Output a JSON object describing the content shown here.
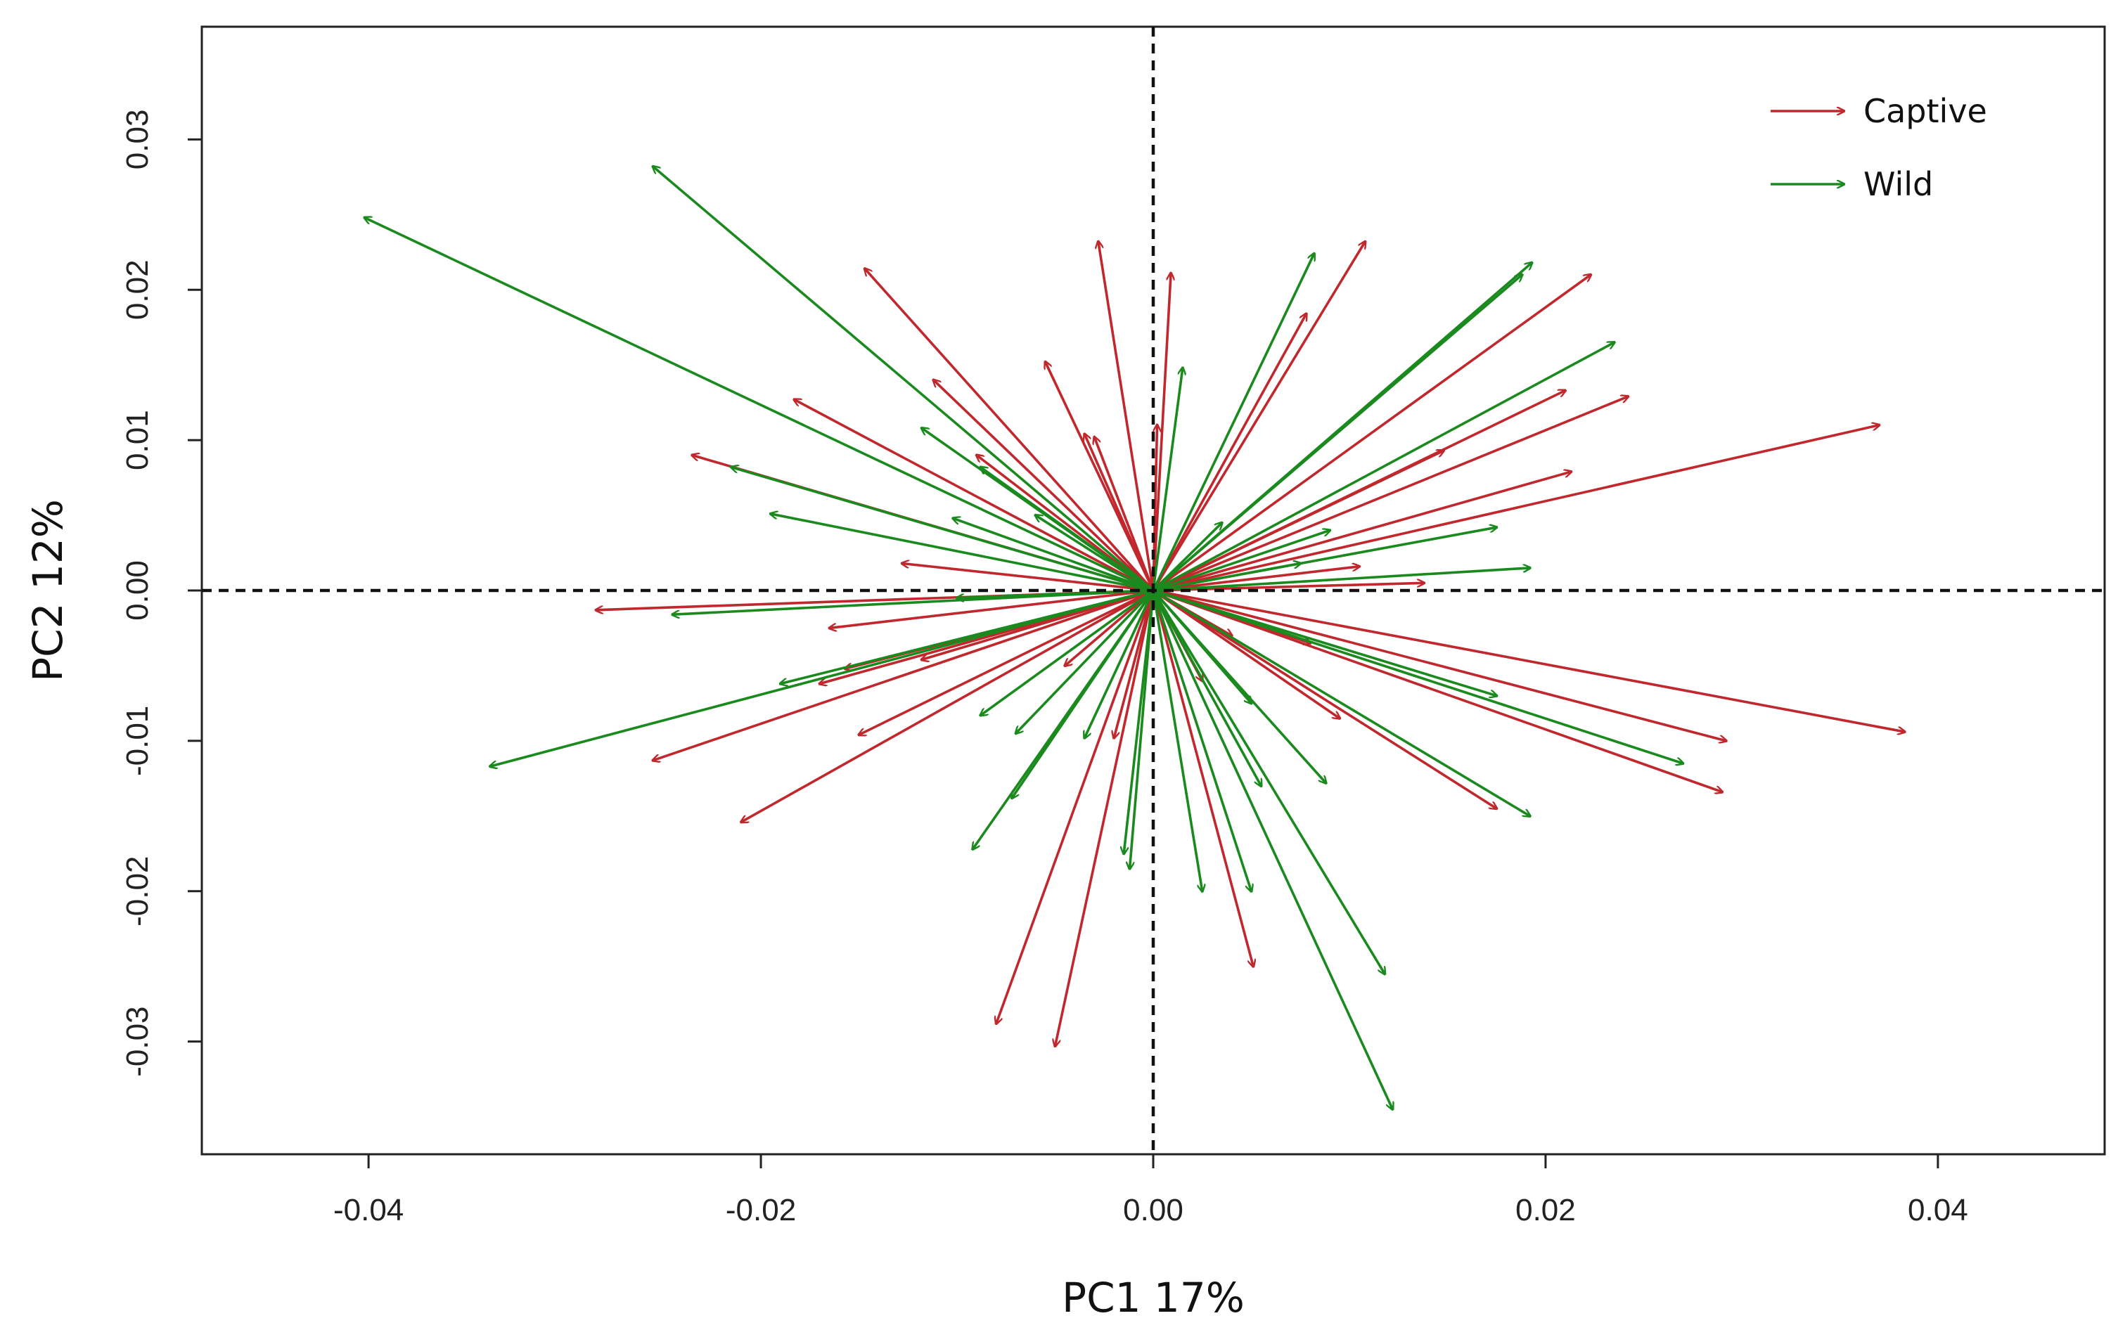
{
  "chart_data": {
    "type": "scatter",
    "subtype": "biplot-arrows",
    "xlabel": "PC1 17%",
    "ylabel": "PC2 12%",
    "xlim": [
      -0.0485,
      0.0485
    ],
    "ylim": [
      -0.0375,
      0.0375
    ],
    "xticks": [
      -0.04,
      -0.02,
      0.0,
      0.02,
      0.04
    ],
    "xtick_labels": [
      "-0.04",
      "-0.02",
      "0.00",
      "0.02",
      "0.04"
    ],
    "yticks": [
      -0.03,
      -0.02,
      -0.01,
      0.0,
      0.01,
      0.02,
      0.03
    ],
    "ytick_labels": [
      "-0.03",
      "-0.02",
      "-0.01",
      "0.00",
      "0.01",
      "0.02",
      "0.03"
    ],
    "reference_lines": {
      "x": 0,
      "y": 0,
      "style": "dashed"
    },
    "grid": false,
    "legend": {
      "position": "top-right"
    },
    "series": [
      {
        "name": "Captive",
        "color": "#C0282D",
        "vectors": [
          [
            -0.0028,
            0.0232
          ],
          [
            0.0009,
            0.0211
          ],
          [
            -0.0147,
            0.0214
          ],
          [
            -0.0112,
            0.014
          ],
          [
            -0.0055,
            0.0152
          ],
          [
            -0.0183,
            0.0127
          ],
          [
            -0.0235,
            0.009
          ],
          [
            -0.0035,
            0.0104
          ],
          [
            -0.003,
            0.0102
          ],
          [
            -0.009,
            0.009
          ],
          [
            -0.0128,
            0.0018
          ],
          [
            -0.0284,
            -0.0013
          ],
          [
            -0.0165,
            -0.0025
          ],
          [
            -0.0157,
            -0.0052
          ],
          [
            -0.017,
            -0.0062
          ],
          [
            -0.0118,
            -0.0046
          ],
          [
            -0.015,
            -0.0096
          ],
          [
            -0.0255,
            -0.0113
          ],
          [
            -0.021,
            -0.0154
          ],
          [
            -0.008,
            -0.0288
          ],
          [
            -0.005,
            -0.0303
          ],
          [
            0.0108,
            0.0232
          ],
          [
            0.0078,
            0.0184
          ],
          [
            0.0223,
            0.021
          ],
          [
            0.021,
            0.0133
          ],
          [
            0.0242,
            0.0129
          ],
          [
            0.037,
            0.011
          ],
          [
            0.0148,
            0.0093
          ],
          [
            0.0213,
            0.0079
          ],
          [
            0.0105,
            0.0016
          ],
          [
            0.0138,
            0.0005
          ],
          [
            0.0383,
            -0.0094
          ],
          [
            0.0292,
            -0.01
          ],
          [
            0.029,
            -0.0134
          ],
          [
            0.0175,
            -0.0145
          ],
          [
            0.0095,
            -0.0085
          ],
          [
            0.0051,
            -0.025
          ],
          [
            0.0002,
            0.011
          ],
          [
            0.0025,
            -0.006
          ],
          [
            -0.002,
            -0.0098
          ],
          [
            -0.0045,
            -0.005
          ],
          [
            0.008,
            -0.0035
          ],
          [
            0.004,
            -0.003
          ]
        ]
      },
      {
        "name": "Wild",
        "color": "#1A8A1E",
        "vectors": [
          [
            -0.0402,
            0.0248
          ],
          [
            -0.0255,
            0.0282
          ],
          [
            -0.0215,
            0.0082
          ],
          [
            -0.0195,
            0.0051
          ],
          [
            -0.0118,
            0.0108
          ],
          [
            -0.0088,
            0.0082
          ],
          [
            -0.0102,
            0.0048
          ],
          [
            -0.006,
            0.005
          ],
          [
            -0.0245,
            -0.0016
          ],
          [
            -0.01,
            -0.0005
          ],
          [
            -0.019,
            -0.0062
          ],
          [
            -0.0338,
            -0.0117
          ],
          [
            -0.0092,
            -0.0172
          ],
          [
            -0.0072,
            -0.0138
          ],
          [
            -0.007,
            -0.0095
          ],
          [
            -0.0088,
            -0.0083
          ],
          [
            -0.0015,
            -0.0175
          ],
          [
            -0.0012,
            -0.0185
          ],
          [
            -0.0035,
            -0.0098
          ],
          [
            0.0015,
            0.0148
          ],
          [
            0.0082,
            0.0224
          ],
          [
            0.0193,
            0.0218
          ],
          [
            0.0188,
            0.021
          ],
          [
            0.0235,
            0.0165
          ],
          [
            0.0175,
            0.0042
          ],
          [
            0.0192,
            0.0015
          ],
          [
            0.0175,
            -0.007
          ],
          [
            0.027,
            -0.0115
          ],
          [
            0.0192,
            -0.015
          ],
          [
            0.0088,
            -0.0128
          ],
          [
            0.0118,
            -0.0255
          ],
          [
            0.0122,
            -0.0345
          ],
          [
            0.005,
            -0.02
          ],
          [
            0.0025,
            -0.02
          ],
          [
            0.0055,
            -0.013
          ],
          [
            0.005,
            -0.0075
          ],
          [
            0.0075,
            0.0018
          ],
          [
            0.009,
            0.004
          ],
          [
            0.0035,
            0.0045
          ]
        ]
      }
    ]
  }
}
